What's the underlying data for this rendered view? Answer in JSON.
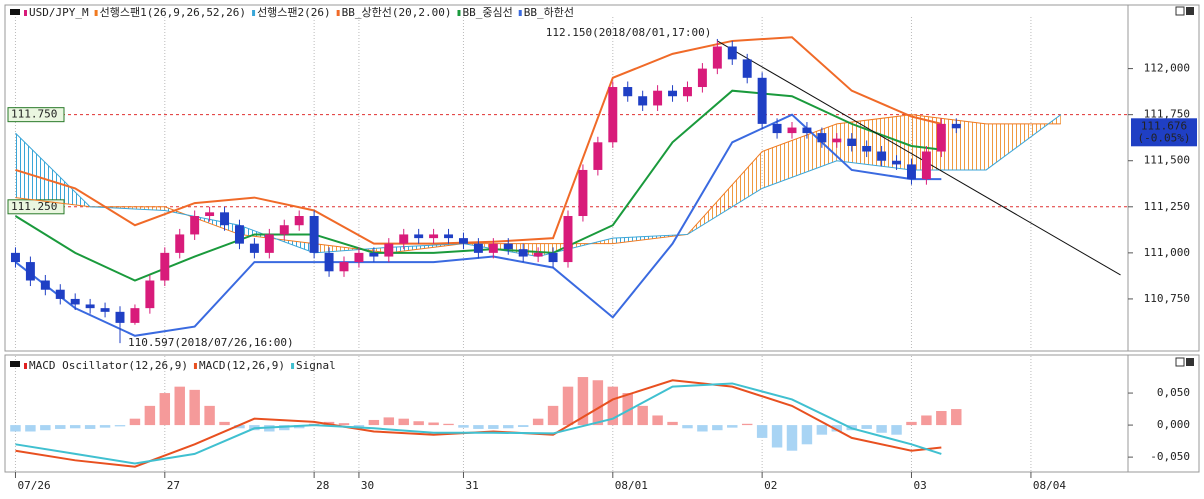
{
  "chart_data": [
    {
      "type": "candlestick",
      "name": "USD/JPY_M",
      "up_color": "#d81b7a",
      "down_color": "#1f3fc4",
      "xlim": [
        0,
        74
      ],
      "xticks": [
        {
          "value": 0,
          "label": "07/26"
        },
        {
          "value": 10,
          "label": "27"
        },
        {
          "value": 20,
          "label": "28"
        },
        {
          "value": 23,
          "label": "30"
        },
        {
          "value": 30,
          "label": "31"
        },
        {
          "value": 40,
          "label": "08/01"
        },
        {
          "value": 50,
          "label": "02"
        },
        {
          "value": 60,
          "label": "03"
        },
        {
          "value": 68,
          "label": "08/04"
        }
      ],
      "grid": "x",
      "ylim": [
        110.5,
        112.28
      ],
      "yticks": [
        {
          "value": 110.75,
          "label": "110,750"
        },
        {
          "value": 111.0,
          "label": "111,000"
        },
        {
          "value": 111.25,
          "label": "111,250"
        },
        {
          "value": 111.5,
          "label": "111,500"
        },
        {
          "value": 111.75,
          "label": "111,750"
        },
        {
          "value": 112.0,
          "label": "112,000"
        }
      ],
      "open": [
        111.0,
        110.95,
        110.85,
        110.8,
        110.75,
        110.72,
        110.7,
        110.68,
        110.62,
        110.7,
        110.85,
        111.0,
        111.1,
        111.2,
        111.22,
        111.15,
        111.05,
        111.0,
        111.1,
        111.15,
        111.2,
        111.0,
        110.9,
        110.95,
        111.0,
        110.98,
        111.05,
        111.1,
        111.08,
        111.1,
        111.08,
        111.05,
        111.0,
        111.05,
        111.02,
        110.98,
        111.0,
        110.95,
        111.2,
        111.45,
        111.6,
        111.9,
        111.85,
        111.8,
        111.88,
        111.85,
        111.9,
        112.0,
        112.12,
        112.05,
        111.95,
        111.7,
        111.65,
        111.68,
        111.65,
        111.6,
        111.62,
        111.58,
        111.55,
        111.5,
        111.48,
        111.4,
        111.55,
        111.7
      ],
      "high": [
        111.03,
        110.98,
        110.88,
        110.83,
        110.78,
        110.75,
        110.73,
        110.71,
        110.72,
        110.88,
        111.03,
        111.13,
        111.23,
        111.25,
        111.25,
        111.18,
        111.08,
        111.13,
        111.18,
        111.23,
        111.23,
        111.03,
        110.98,
        111.03,
        111.03,
        111.08,
        111.13,
        111.13,
        111.13,
        111.13,
        111.11,
        111.08,
        111.08,
        111.08,
        111.05,
        111.03,
        111.03,
        111.23,
        111.48,
        111.63,
        111.93,
        111.93,
        111.88,
        111.91,
        111.91,
        111.93,
        112.03,
        112.15,
        112.15,
        112.08,
        111.98,
        111.73,
        111.71,
        111.71,
        111.68,
        111.65,
        111.65,
        111.61,
        111.58,
        111.53,
        111.51,
        111.58,
        111.73,
        111.73
      ],
      "low": [
        110.92,
        110.82,
        110.77,
        110.72,
        110.69,
        110.67,
        110.65,
        110.597,
        110.61,
        110.67,
        110.82,
        110.97,
        111.07,
        111.17,
        111.12,
        111.02,
        110.97,
        110.97,
        111.07,
        111.12,
        110.97,
        110.87,
        110.87,
        110.92,
        110.95,
        110.95,
        111.02,
        111.05,
        111.05,
        111.05,
        111.02,
        110.97,
        110.97,
        110.99,
        110.95,
        110.95,
        110.92,
        110.92,
        111.17,
        111.42,
        111.57,
        111.82,
        111.77,
        111.77,
        111.82,
        111.82,
        111.87,
        111.97,
        112.02,
        111.92,
        111.67,
        111.62,
        111.62,
        111.62,
        111.57,
        111.57,
        111.55,
        111.52,
        111.47,
        111.45,
        111.37,
        111.37,
        111.52,
        111.65
      ],
      "close": [
        110.95,
        110.85,
        110.8,
        110.75,
        110.72,
        110.7,
        110.68,
        110.62,
        110.7,
        110.85,
        111.0,
        111.1,
        111.2,
        111.22,
        111.15,
        111.05,
        111.0,
        111.1,
        111.15,
        111.2,
        111.0,
        110.9,
        110.95,
        111.0,
        110.98,
        111.05,
        111.1,
        111.08,
        111.1,
        111.08,
        111.05,
        111.0,
        111.05,
        111.02,
        110.98,
        111.0,
        110.95,
        111.2,
        111.45,
        111.6,
        111.9,
        111.85,
        111.8,
        111.88,
        111.85,
        111.9,
        112.0,
        112.12,
        112.05,
        111.95,
        111.7,
        111.65,
        111.68,
        111.65,
        111.6,
        111.62,
        111.58,
        111.55,
        111.5,
        111.48,
        111.4,
        111.55,
        111.7,
        111.676
      ],
      "series": [
        {
          "name": "선행스팬1(26,9,26,52,26)",
          "color": "#f07a20",
          "x": [
            0,
            5,
            10,
            15,
            20,
            25,
            30,
            35,
            40,
            45,
            50,
            55,
            60,
            65,
            70
          ],
          "values": [
            111.3,
            111.25,
            111.25,
            111.1,
            111.05,
            111.0,
            111.05,
            111.05,
            111.05,
            111.1,
            111.55,
            111.7,
            111.75,
            111.7,
            111.7
          ]
        },
        {
          "name": "선행스팬2(26)",
          "color": "#3aa6d8",
          "x": [
            0,
            5,
            10,
            15,
            20,
            25,
            30,
            35,
            40,
            45,
            50,
            55,
            60,
            65,
            70
          ],
          "values": [
            111.65,
            111.25,
            111.23,
            111.15,
            111.0,
            111.03,
            111.05,
            110.98,
            111.08,
            111.1,
            111.35,
            111.5,
            111.45,
            111.45,
            111.75
          ]
        },
        {
          "name": "BB_상한선(20,2.00)",
          "color": "#f06a28",
          "x": [
            0,
            4,
            8,
            12,
            16,
            20,
            24,
            28,
            32,
            36,
            40,
            44,
            48,
            52,
            56,
            60,
            62
          ],
          "values": [
            111.45,
            111.35,
            111.15,
            111.27,
            111.3,
            111.23,
            111.05,
            111.05,
            111.06,
            111.08,
            111.95,
            112.08,
            112.15,
            112.17,
            111.88,
            111.74,
            111.7
          ]
        },
        {
          "name": "BB_중심선",
          "color": "#1a9a3c",
          "x": [
            0,
            4,
            8,
            12,
            16,
            20,
            24,
            28,
            32,
            36,
            40,
            44,
            48,
            52,
            56,
            60,
            62
          ],
          "values": [
            111.2,
            111.0,
            110.85,
            110.98,
            111.1,
            111.1,
            111.0,
            111.0,
            111.02,
            111.0,
            111.15,
            111.6,
            111.88,
            111.85,
            111.7,
            111.58,
            111.56
          ]
        },
        {
          "name": "BB_하한선",
          "color": "#3a6ae0",
          "x": [
            0,
            4,
            8,
            12,
            16,
            20,
            24,
            28,
            32,
            36,
            40,
            44,
            48,
            52,
            56,
            60,
            62
          ],
          "values": [
            110.95,
            110.7,
            110.55,
            110.6,
            110.95,
            110.95,
            110.95,
            110.95,
            110.98,
            110.92,
            110.65,
            111.05,
            111.6,
            111.75,
            111.45,
            111.4,
            111.4
          ]
        }
      ],
      "hlines": [
        {
          "value": 111.75,
          "label": "111.750"
        },
        {
          "value": 111.25,
          "label": "111.250"
        }
      ],
      "trendline": {
        "x": [
          47,
          74
        ],
        "y": [
          112.15,
          110.88
        ]
      },
      "annotations": [
        {
          "text": "112.150(2018/08/01,17:00)",
          "x": 47,
          "y": 112.15
        },
        {
          "text": "110.597(2018/07/26,16:00)",
          "x": 7,
          "y": 110.597
        }
      ],
      "last_price": {
        "value": 111.676,
        "label": "111.676",
        "change": "(-0.05%)"
      }
    },
    {
      "type": "macd",
      "ylim": [
        -0.067,
        0.086
      ],
      "yticks": [
        {
          "value": 0.05,
          "label": "0,050"
        },
        {
          "value": 0,
          "label": "0,000"
        },
        {
          "value": -0.05,
          "label": "-0,050"
        }
      ],
      "histogram": {
        "name": "MACD Oscillator(12,26,9)",
        "pos_color": "#f59a9a",
        "neg_color": "#a8d4f4",
        "values": [
          -0.01,
          -0.01,
          -0.008,
          -0.006,
          -0.005,
          -0.006,
          -0.004,
          -0.002,
          0.01,
          0.03,
          0.05,
          0.06,
          0.055,
          0.03,
          0.005,
          -0.005,
          -0.008,
          -0.01,
          -0.008,
          -0.005,
          0.002,
          0.005,
          0.003,
          -0.004,
          0.008,
          0.012,
          0.01,
          0.006,
          0.004,
          0.002,
          -0.004,
          -0.006,
          -0.006,
          -0.005,
          -0.003,
          0.01,
          0.03,
          0.06,
          0.075,
          0.07,
          0.06,
          0.05,
          0.03,
          0.015,
          0.005,
          -0.005,
          -0.01,
          -0.008,
          -0.004,
          0.002,
          -0.02,
          -0.035,
          -0.04,
          -0.03,
          -0.015,
          -0.01,
          -0.008,
          -0.006,
          -0.012,
          -0.015,
          0.005,
          0.015,
          0.022,
          0.025
        ]
      },
      "series": [
        {
          "name": "MACD(12,26,9)",
          "color": "#e85020",
          "x": [
            0,
            4,
            8,
            12,
            16,
            20,
            24,
            28,
            32,
            36,
            40,
            44,
            48,
            52,
            56,
            60,
            62
          ],
          "values": [
            -0.04,
            -0.055,
            -0.065,
            -0.03,
            0.01,
            0.005,
            -0.01,
            -0.015,
            -0.01,
            -0.015,
            0.04,
            0.07,
            0.06,
            0.03,
            -0.02,
            -0.04,
            -0.035
          ]
        },
        {
          "name": "Signal",
          "color": "#40c0d0",
          "x": [
            0,
            4,
            8,
            12,
            16,
            20,
            24,
            28,
            32,
            36,
            40,
            44,
            48,
            52,
            56,
            60,
            62
          ],
          "values": [
            -0.03,
            -0.045,
            -0.06,
            -0.045,
            -0.005,
            0.0,
            -0.005,
            -0.012,
            -0.012,
            -0.013,
            0.01,
            0.06,
            0.065,
            0.04,
            -0.005,
            -0.03,
            -0.045
          ]
        }
      ]
    }
  ]
}
